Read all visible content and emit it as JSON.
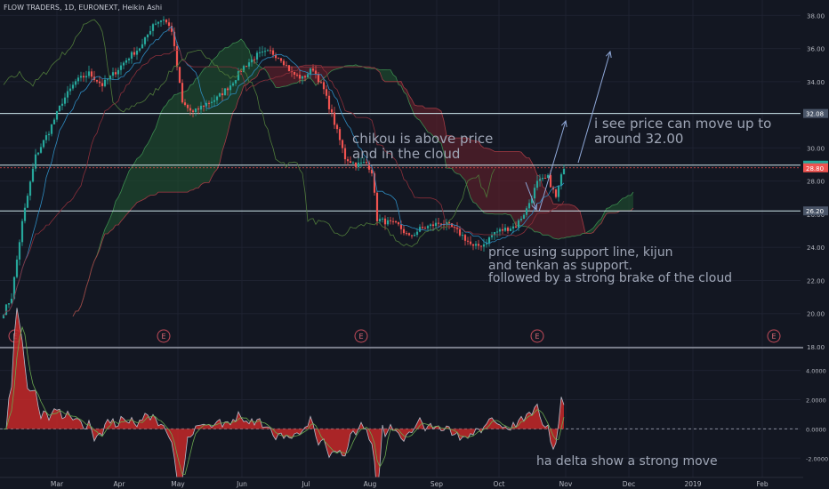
{
  "header": {
    "title": "FLOW TRADERS, 1D, EURONEXT, Heikin Ashi"
  },
  "annotations": {
    "chikou": "chikou is above price\nand in the cloud",
    "target": "i see price can move up to\naround 32.00",
    "support": "price using support line, kijun\nand tenkan as support.\nfollowed by a strong brake of the cloud",
    "delta": "ha delta show a strong move"
  },
  "colors": {
    "bg": "#131722",
    "up": "#26a69a",
    "down": "#ef5350",
    "line": "#7dd3e0",
    "cloud_bull": "#1e4a2e",
    "cloud_bear": "#5a1f2a"
  },
  "chart_data": [
    {
      "type": "candlestick",
      "title": "FLOW TRADERS, 1D, EURONEXT, Heikin Ashi",
      "y_axis_ticks": [
        "38.00",
        "36.00",
        "34.00",
        "32.00",
        "30.00",
        "28.00",
        "26.00",
        "24.00",
        "22.00",
        "20.00",
        "18.00"
      ],
      "ylim": [
        18,
        38.5
      ],
      "x_axis_ticks": [
        "Mar",
        "Apr",
        "May",
        "Jun",
        "Jul",
        "Aug",
        "Sep",
        "Oct",
        "Nov",
        "Dec",
        "2019",
        "Feb"
      ],
      "horizontal_lines": [
        32.08,
        28.96,
        26.2
      ],
      "price_labels": [
        {
          "value": 32.08,
          "label": "32.08",
          "color": "#4a5568"
        },
        {
          "value": 28.96,
          "label": "28.96",
          "color": "#26a69a"
        },
        {
          "value": 28.8,
          "label": "28.80",
          "color": "#ef5350"
        },
        {
          "value": 26.2,
          "label": "26.20",
          "color": "#4a5568"
        }
      ],
      "earnings_markers": [
        "E",
        "E",
        "E",
        "E",
        "E"
      ],
      "close_keypoints": [
        [
          0,
          20.1
        ],
        [
          3,
          21.0
        ],
        [
          7,
          25.5
        ],
        [
          12,
          29.5
        ],
        [
          17,
          31.0
        ],
        [
          22,
          32.8
        ],
        [
          27,
          34.0
        ],
        [
          32,
          34.5
        ],
        [
          37,
          33.8
        ],
        [
          42,
          34.6
        ],
        [
          47,
          35.5
        ],
        [
          52,
          36.2
        ],
        [
          56,
          37.5
        ],
        [
          60,
          37.8
        ],
        [
          63,
          37.1
        ],
        [
          67,
          32.7
        ],
        [
          71,
          32.1
        ],
        [
          75,
          32.6
        ],
        [
          80,
          33.0
        ],
        [
          85,
          33.8
        ],
        [
          90,
          34.9
        ],
        [
          95,
          35.6
        ],
        [
          100,
          35.8
        ],
        [
          104,
          35.4
        ],
        [
          108,
          34.5
        ],
        [
          112,
          34.2
        ],
        [
          116,
          34.8
        ],
        [
          120,
          33.5
        ],
        [
          124,
          31.5
        ],
        [
          128,
          29.4
        ],
        [
          132,
          29.0
        ],
        [
          136,
          29.1
        ],
        [
          138,
          28.6
        ],
        [
          140,
          25.7
        ],
        [
          144,
          25.5
        ],
        [
          148,
          25.3
        ],
        [
          152,
          24.6
        ],
        [
          156,
          25.1
        ],
        [
          160,
          25.3
        ],
        [
          164,
          25.5
        ],
        [
          168,
          25.2
        ],
        [
          172,
          24.7
        ],
        [
          176,
          24.0
        ],
        [
          180,
          24.2
        ],
        [
          184,
          24.9
        ],
        [
          188,
          25.1
        ],
        [
          192,
          25.3
        ],
        [
          196,
          26.3
        ],
        [
          200,
          27.9
        ],
        [
          204,
          28.2
        ],
        [
          207,
          27.0
        ],
        [
          210,
          28.9
        ]
      ]
    },
    {
      "type": "area",
      "title": "ha delta",
      "y_axis_ticks": [
        "4.0000",
        "2.0000",
        "0.0000",
        "-2.0000"
      ],
      "ylim": [
        -3.2,
        5.5
      ],
      "x_axis_ticks": [
        "Mar",
        "Apr",
        "May",
        "Jun",
        "Jul",
        "Aug",
        "Sep",
        "Oct",
        "Nov",
        "Dec",
        "2019",
        "Feb"
      ],
      "zero_line": 0
    }
  ]
}
